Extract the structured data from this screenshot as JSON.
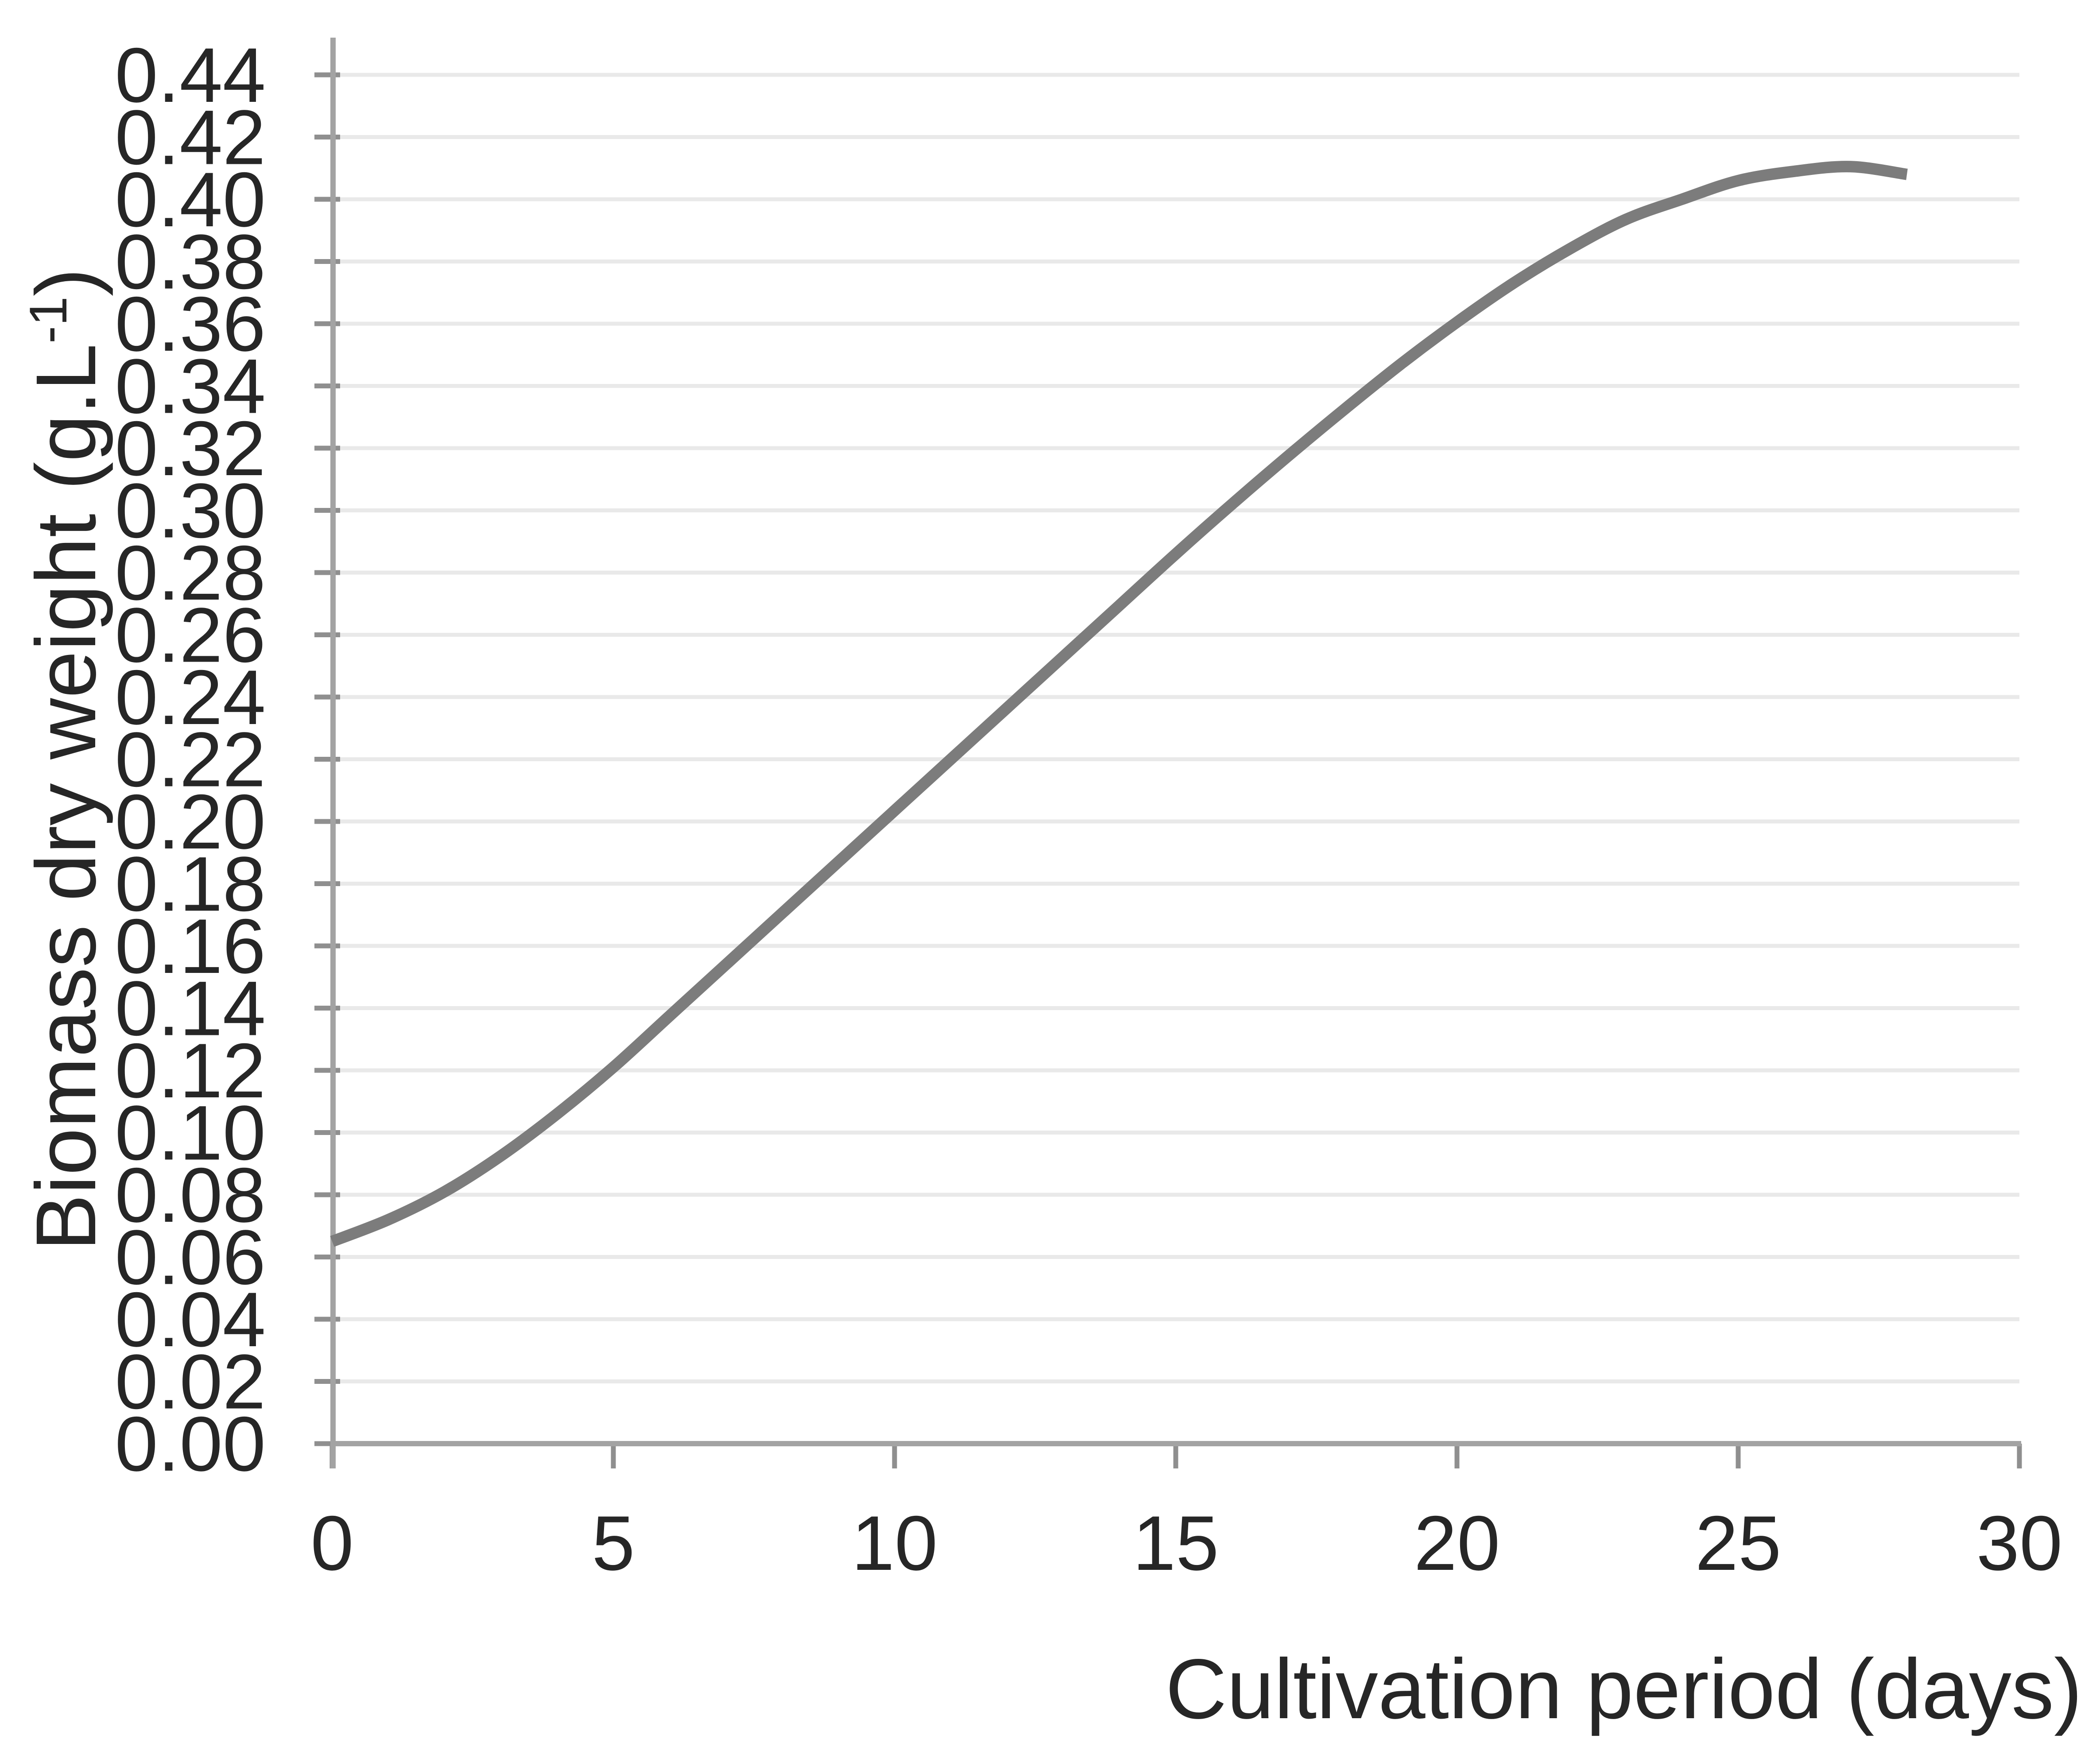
{
  "chart_data": {
    "type": "line",
    "title": "",
    "xlabel": "Cultivation period (days)",
    "ylabel": "Biomass dry weight (g.L-1)",
    "ylabel_parts": {
      "main": "Biomass dry weight (g.L",
      "sup": "-1",
      "close": ")"
    },
    "xlim": [
      0,
      30
    ],
    "ylim": [
      0,
      0.44
    ],
    "x_tick_step": 5,
    "y_tick_step": 0.02,
    "x_ticks": [
      0,
      5,
      10,
      15,
      20,
      25,
      30
    ],
    "x_tick_labels": [
      "0",
      "5",
      "10",
      "15",
      "20",
      "25",
      "30"
    ],
    "y_ticks": [
      0.0,
      0.02,
      0.04,
      0.06,
      0.08,
      0.1,
      0.12,
      0.14,
      0.16,
      0.18,
      0.2,
      0.22,
      0.24,
      0.26,
      0.28,
      0.3,
      0.32,
      0.34,
      0.36,
      0.38,
      0.4,
      0.42,
      0.44
    ],
    "y_tick_labels": [
      "0.00",
      "0.02",
      "0.04",
      "0.06",
      "0.08",
      "0.10",
      "0.12",
      "0.14",
      "0.16",
      "0.18",
      "0.20",
      "0.22",
      "0.24",
      "0.26",
      "0.28",
      "0.30",
      "0.32",
      "0.34",
      "0.36",
      "0.38",
      "0.40",
      "0.42",
      "0.44"
    ],
    "grid": "horizontal",
    "legend": "none",
    "series": [
      {
        "name": "Biomass dry weight",
        "color": "#7c7c7c",
        "x": [
          0,
          1,
          2,
          3,
          4,
          5,
          6,
          7,
          8,
          9,
          10,
          11,
          12,
          13,
          14,
          15,
          16,
          17,
          18,
          19,
          20,
          21,
          22,
          23,
          24,
          25,
          26,
          27,
          28
        ],
        "y": [
          0.065,
          0.072,
          0.081,
          0.0925,
          0.106,
          0.121,
          0.1375,
          0.154,
          0.1705,
          0.187,
          0.2035,
          0.22,
          0.2365,
          0.253,
          0.2695,
          0.286,
          0.302,
          0.3175,
          0.3325,
          0.347,
          0.3605,
          0.373,
          0.384,
          0.3935,
          0.4,
          0.406,
          0.409,
          0.4105,
          0.408
        ]
      }
    ]
  },
  "colors": {
    "background": "#ffffff",
    "curve": "#7c7c7c",
    "axis_line": "#a3a3a3",
    "tick_mark": "#8f8f8f",
    "gridline": "#e9e9e9",
    "label_text": "#262626"
  }
}
